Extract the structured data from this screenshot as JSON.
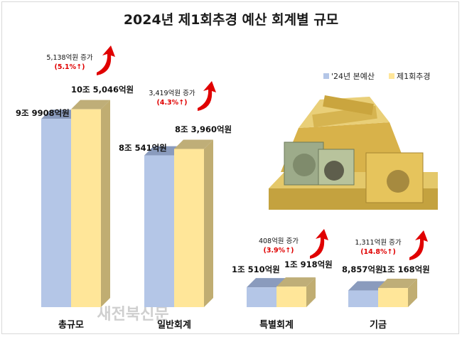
{
  "chart_data": {
    "type": "bar",
    "title": "2024년 제1회추경 예산 회계별 규모",
    "unit": "억원",
    "categories": [
      "총규모",
      "일반회계",
      "특별회계",
      "기금"
    ],
    "series": [
      {
        "name": "'24년 본예산",
        "values": [
          99908,
          80541,
          10510,
          8857
        ],
        "color": "#b4c6e7"
      },
      {
        "name": "제1회추경",
        "values": [
          105046,
          83960,
          10918,
          10168
        ],
        "color": "#ffe699"
      }
    ],
    "value_labels": [
      [
        "9조 9908억원",
        "10조 5,046억원"
      ],
      [
        "8조 541억원",
        "8조 3,960억원"
      ],
      [
        "1조 510억원",
        "1조 918억원"
      ],
      [
        "8,857억원",
        "1조 168억원"
      ]
    ],
    "increases": [
      {
        "amount": "5,138억원 증가",
        "percent": "(5.1%↑)"
      },
      {
        "amount": "3,419억원 증가",
        "percent": "(4.3%↑)"
      },
      {
        "amount": "408억원 증가",
        "percent": "(3.9%↑)"
      },
      {
        "amount": "1,311억원 증가",
        "percent": "(14.8%↑)"
      }
    ],
    "legend_position": "top-right",
    "grid": false
  },
  "watermark": "새전북신문",
  "colors": {
    "arrow": "#e00000",
    "blue_side": "#8ea1c5",
    "yellow_side": "#c0ad72"
  }
}
